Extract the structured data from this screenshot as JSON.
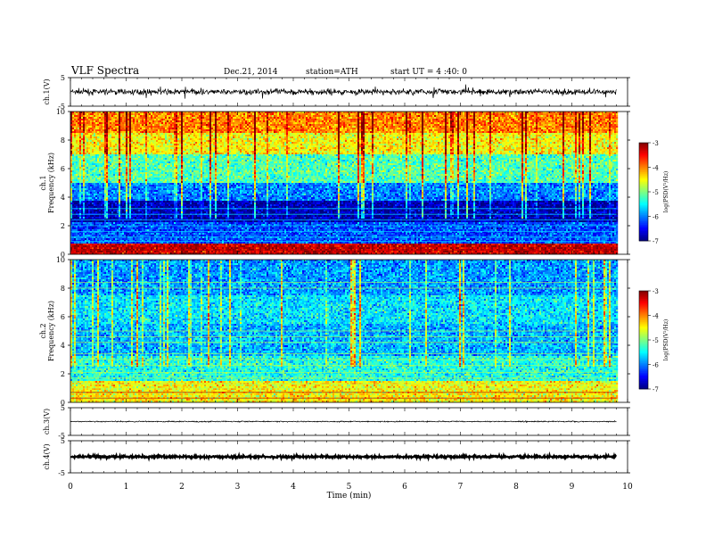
{
  "header": {
    "title": "VLF  Spectra",
    "date": "Dec.21, 2014",
    "station": "station=ATH",
    "start": "start  UT  =   4 :40: 0"
  },
  "chart_data": [
    {
      "type": "line",
      "panel": "ch1-waveform",
      "ylabel": "ch.1(V)",
      "xlim": [
        0,
        10
      ],
      "ylim": [
        -5,
        5
      ],
      "yticks": [
        5,
        -5
      ],
      "mean": 0,
      "noise_amplitude": 1.0,
      "spike_amplitude": 2.3,
      "data_end_min": 9.8
    },
    {
      "type": "heatmap",
      "panel": "ch1-spectrogram",
      "ylabel": "ch.1\nFrequency (kHz)",
      "xlim": [
        0,
        10
      ],
      "ylim": [
        0,
        10
      ],
      "yticks": [
        0,
        2,
        4,
        6,
        8,
        10
      ],
      "data_end_min": 9.8,
      "colorbar": {
        "label": "log(PSD(V²/Hz)",
        "range": [
          -7,
          -3
        ],
        "ticks": [
          -3,
          -4,
          -5,
          -6,
          -7
        ]
      },
      "band_profile": [
        {
          "freq_khz": [
            0.0,
            0.8
          ],
          "level": -3.3
        },
        {
          "freq_khz": [
            0.8,
            2.2
          ],
          "level": -6.2
        },
        {
          "freq_khz": [
            2.2,
            3.7
          ],
          "level": -6.8
        },
        {
          "freq_khz": [
            3.7,
            5.0
          ],
          "level": -6.0
        },
        {
          "freq_khz": [
            5.0,
            7.0
          ],
          "level": -5.2
        },
        {
          "freq_khz": [
            7.0,
            8.5
          ],
          "level": -4.5
        },
        {
          "freq_khz": [
            8.5,
            10.0
          ],
          "level": -4.0
        }
      ]
    },
    {
      "type": "heatmap",
      "panel": "ch2-spectrogram",
      "ylabel": "ch.2\nFrequency (kHz)",
      "xlim": [
        0,
        10
      ],
      "ylim": [
        0,
        10
      ],
      "yticks": [
        0,
        2,
        4,
        6,
        8,
        10
      ],
      "data_end_min": 9.8,
      "colorbar": {
        "label": "log(PSD(V²/Hz)",
        "range": [
          -7,
          -3
        ],
        "ticks": [
          -3,
          -4,
          -5,
          -6,
          -7
        ]
      },
      "band_profile": [
        {
          "freq_khz": [
            0.0,
            1.5
          ],
          "level": -4.5
        },
        {
          "freq_khz": [
            1.5,
            3.2
          ],
          "level": -5.4
        },
        {
          "freq_khz": [
            3.2,
            5.5
          ],
          "level": -5.8
        },
        {
          "freq_khz": [
            5.5,
            7.5
          ],
          "level": -5.6
        },
        {
          "freq_khz": [
            7.5,
            10.0
          ],
          "level": -5.9
        }
      ]
    },
    {
      "type": "line",
      "panel": "ch3-waveform",
      "ylabel": "ch.3(V)",
      "xlim": [
        0,
        10
      ],
      "ylim": [
        -5,
        5
      ],
      "yticks": [
        5,
        -5
      ],
      "mean": 0,
      "noise_amplitude": 0.2,
      "data_end_min": 9.8
    },
    {
      "type": "line",
      "panel": "ch4-waveform",
      "ylabel": "ch.4(V)",
      "xlim": [
        0,
        10
      ],
      "ylim": [
        -5,
        5
      ],
      "yticks": [
        5,
        -5
      ],
      "mean": 0,
      "noise_amplitude": 0.35,
      "data_end_min": 9.8
    }
  ],
  "xaxis": {
    "label": "Time  (min)",
    "ticks": [
      "0",
      "1",
      "2",
      "3",
      "4",
      "5",
      "6",
      "7",
      "8",
      "9",
      "10"
    ]
  }
}
